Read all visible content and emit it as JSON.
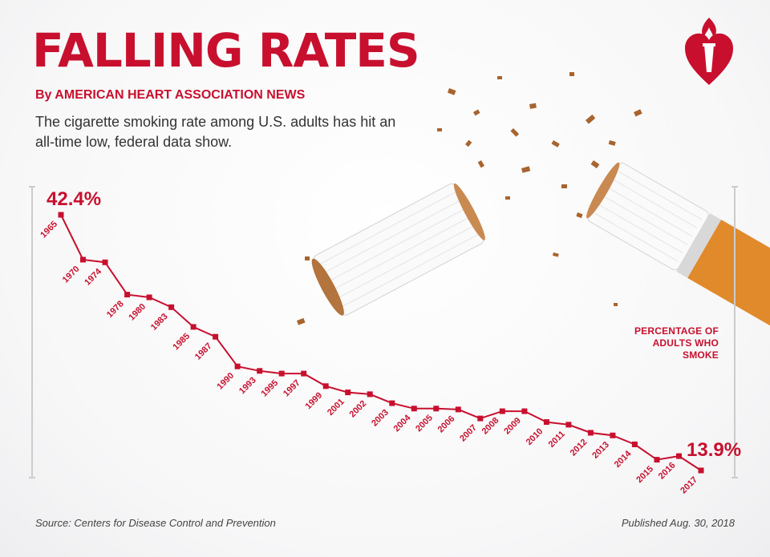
{
  "header": {
    "title": "FALLING RATES",
    "byline": "By AMERICAN HEART ASSOCIATION NEWS",
    "subtitle": "The cigarette smoking rate among U.S. adults has hit an all-time low, federal data show."
  },
  "footer": {
    "source": "Source: Centers for Disease Control and Prevention",
    "published": "Published Aug. 30, 2018"
  },
  "colors": {
    "accent": "#c8102e",
    "text": "#333333",
    "axis": "#cccccc",
    "filter": "#e08a2c"
  },
  "icons": [
    "american-heart-association-logo-icon",
    "broken-cigarette-illustration"
  ],
  "chart_data": {
    "type": "line",
    "title": "",
    "ylabel": "PERCENTAGE OF ADULTS WHO SMOKE",
    "xlabel": "",
    "categories": [
      "1965",
      "1970",
      "1974",
      "1978",
      "1980",
      "1983",
      "1985",
      "1987",
      "1990",
      "1993",
      "1995",
      "1997",
      "1999",
      "2001",
      "2002",
      "2003",
      "2004",
      "2005",
      "2006",
      "2007",
      "2008",
      "2009",
      "2010",
      "2011",
      "2012",
      "2013",
      "2014",
      "2015",
      "2016",
      "2017"
    ],
    "series": [
      {
        "values": [
          42.4,
          37.4,
          37.1,
          33.5,
          33.2,
          32.1,
          29.9,
          28.8,
          25.5,
          25.0,
          24.7,
          24.7,
          23.3,
          22.6,
          22.4,
          21.4,
          20.8,
          20.8,
          20.7,
          19.7,
          20.5,
          20.5,
          19.3,
          19.0,
          18.1,
          17.8,
          16.8,
          15.1,
          15.5,
          13.9
        ]
      }
    ],
    "annotations": [
      {
        "label": "42.4%",
        "year": "1965"
      },
      {
        "label": "13.9%",
        "year": "2017"
      }
    ],
    "grid": false,
    "ylim": [
      11.5,
      44
    ]
  }
}
